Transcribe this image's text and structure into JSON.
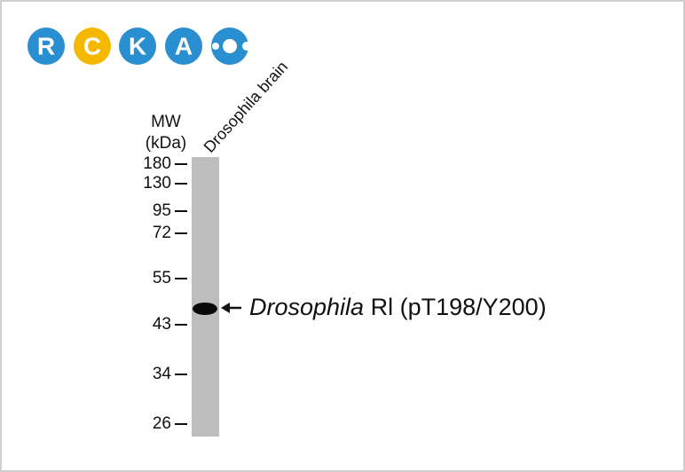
{
  "logo": {
    "letters": [
      "R",
      "C",
      "K",
      "A"
    ]
  },
  "lane_label": "Drosophila brain",
  "mw_header": [
    "MW",
    "(kDa)"
  ],
  "markers": [
    180,
    130,
    95,
    72,
    55,
    43,
    34,
    26
  ],
  "band_label": {
    "italic": "Drosophila",
    "rest": "Rl (pT198/Y200)"
  }
}
